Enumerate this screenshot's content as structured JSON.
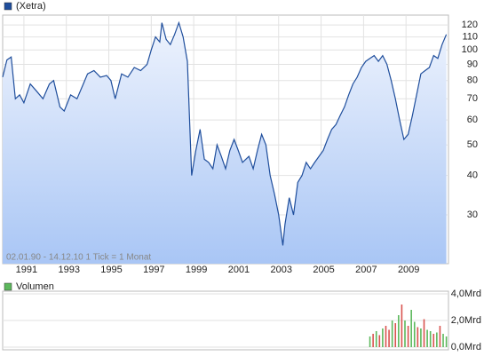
{
  "chart_data": [
    {
      "type": "line",
      "annotation": "02.01.90 - 14.12.10   1 Tick = 1 Monat",
      "x": [
        1990.0,
        1990.2,
        1990.4,
        1990.6,
        1990.8,
        1991.0,
        1991.3,
        1991.6,
        1991.9,
        1992.2,
        1992.4,
        1992.7,
        1992.9,
        1993.2,
        1993.5,
        1993.8,
        1994.0,
        1994.3,
        1994.6,
        1994.9,
        1995.1,
        1995.3,
        1995.6,
        1995.9,
        1996.2,
        1996.5,
        1996.8,
        1997.0,
        1997.2,
        1997.4,
        1997.5,
        1997.7,
        1997.9,
        1998.1,
        1998.3,
        1998.5,
        1998.7,
        1998.9,
        1999.1,
        1999.3,
        1999.5,
        1999.7,
        1999.9,
        2000.1,
        2000.3,
        2000.5,
        2000.7,
        2000.9,
        2001.1,
        2001.3,
        2001.6,
        2001.8,
        2002.0,
        2002.2,
        2002.4,
        2002.6,
        2002.8,
        2003.0,
        2003.2,
        2003.3,
        2003.5,
        2003.7,
        2003.9,
        2004.1,
        2004.3,
        2004.5,
        2004.7,
        2004.9,
        2005.1,
        2005.3,
        2005.5,
        2005.7,
        2005.9,
        2006.1,
        2006.3,
        2006.5,
        2006.7,
        2006.9,
        2007.1,
        2007.3,
        2007.5,
        2007.7,
        2007.9,
        2008.1,
        2008.3,
        2008.5,
        2008.7,
        2008.9,
        2009.1,
        2009.3,
        2009.5,
        2009.7,
        2009.9,
        2010.1,
        2010.3,
        2010.5,
        2010.7,
        2010.9
      ],
      "series": [
        {
          "name": "(Xetra)",
          "color": "#1f4e9c",
          "values": [
            82,
            93,
            95,
            70,
            72,
            68,
            78,
            74,
            70,
            78,
            80,
            66,
            64,
            72,
            70,
            78,
            84,
            86,
            82,
            83,
            80,
            70,
            84,
            82,
            88,
            86,
            90,
            100,
            110,
            106,
            122,
            108,
            104,
            112,
            122,
            110,
            92,
            40,
            48,
            56,
            45,
            44,
            42,
            50,
            46,
            42,
            48,
            52,
            48,
            44,
            46,
            42,
            48,
            54,
            50,
            40,
            35,
            30,
            24,
            28,
            34,
            30,
            38,
            40,
            44,
            42,
            44,
            46,
            48,
            52,
            56,
            58,
            62,
            66,
            72,
            78,
            82,
            88,
            92,
            94,
            96,
            92,
            96,
            90,
            80,
            70,
            60,
            52,
            54,
            62,
            72,
            84,
            86,
            88,
            96,
            94,
            104,
            112
          ]
        }
      ],
      "xlim": [
        1990,
        2011
      ],
      "xticks": [
        1991,
        1993,
        1995,
        1997,
        1999,
        2001,
        2003,
        2005,
        2007,
        2009
      ],
      "ylim": [
        21,
        129
      ],
      "yticks": [
        30,
        40,
        50,
        60,
        70,
        80,
        90,
        100,
        110,
        120
      ],
      "log_scale": true,
      "grid": true
    },
    {
      "type": "bar",
      "x": [
        2007.3,
        2007.45,
        2007.6,
        2007.75,
        2007.9,
        2008.05,
        2008.2,
        2008.35,
        2008.5,
        2008.65,
        2008.8,
        2008.95,
        2009.1,
        2009.25,
        2009.4,
        2009.55,
        2009.7,
        2009.85,
        2010.0,
        2010.15,
        2010.3,
        2010.45,
        2010.6,
        2010.75,
        2010.9
      ],
      "series": [
        {
          "name": "Volumen",
          "color": "#5cb85c",
          "values": [
            0.8,
            1.0,
            1.2,
            0.9,
            1.4,
            1.6,
            1.3,
            2.0,
            1.8,
            2.4,
            3.2,
            2.0,
            1.6,
            2.8,
            1.9,
            1.5,
            1.4,
            2.1,
            1.3,
            1.2,
            1.0,
            1.1,
            1.6,
            1.0,
            0.8
          ],
          "colors": [
            "#5cb85c",
            "#d9534f",
            "#5cb85c",
            "#d9534f",
            "#5cb85c",
            "#d9534f",
            "#d9534f",
            "#5cb85c",
            "#d9534f",
            "#5cb85c",
            "#d9534f",
            "#5cb85c",
            "#d9534f",
            "#5cb85c",
            "#5cb85c",
            "#d9534f",
            "#5cb85c",
            "#d9534f",
            "#5cb85c",
            "#5cb85c",
            "#d9534f",
            "#5cb85c",
            "#d9534f",
            "#5cb85c",
            "#5cb85c"
          ]
        }
      ],
      "xlim": [
        1990,
        2011
      ],
      "ylim": [
        0,
        4.2
      ],
      "yticks": [
        {
          "value": 0,
          "label": "0,0Mrd"
        },
        {
          "value": 2,
          "label": "2,0Mrd"
        },
        {
          "value": 4,
          "label": "4,0Mrd"
        }
      ],
      "grid": true
    }
  ]
}
